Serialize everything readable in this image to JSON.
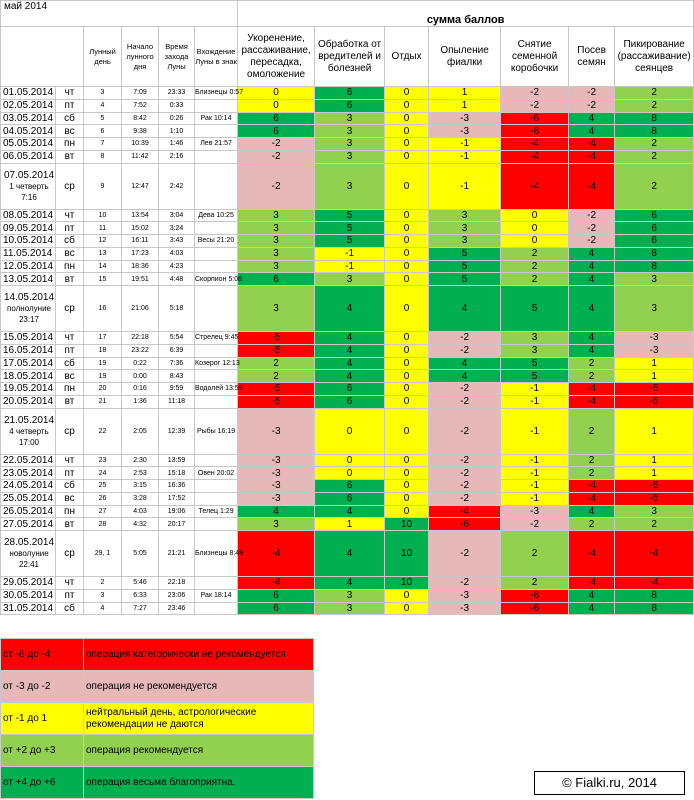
{
  "month_title": "май 2014",
  "sum_header": "сумма баллов",
  "columns": {
    "lunar_day": "Лунный день",
    "moon_rise": "Начало лунного дня",
    "moon_set": "Время захода Луны",
    "sign_entry": "Вхождение Луны в знак",
    "ops": [
      "Укоренение, рассаживание, пересадка, омоложение",
      "Обработка от вредителей и болезней",
      "Отдых",
      "Опыление фиалки",
      "Снятие семенной коробочки",
      "Посев семян",
      "Пикирование (рассаживание) сеянцев"
    ]
  },
  "rows": [
    {
      "date": "01.05.2014",
      "dow": "чт",
      "lunar": "3",
      "rise": "7:09",
      "set": "23:33",
      "sign": "Близнецы 0:57",
      "scores": [
        "0",
        "6",
        "0",
        "1",
        "-2",
        "-2",
        "2"
      ],
      "colors": [
        "y",
        "g",
        "y",
        "y",
        "p",
        "p",
        "lg"
      ]
    },
    {
      "date": "02.05.2014",
      "dow": "пт",
      "lunar": "4",
      "rise": "7:52",
      "set": "0:33",
      "sign": "",
      "scores": [
        "0",
        "6",
        "0",
        "1",
        "-2",
        "-2",
        "2"
      ],
      "colors": [
        "y",
        "g",
        "y",
        "y",
        "p",
        "p",
        "lg"
      ]
    },
    {
      "date": "03.05.2014",
      "dow": "сб",
      "lunar": "5",
      "rise": "8:42",
      "set": "0:26",
      "sign": "Рак 10:14",
      "scores": [
        "6",
        "3",
        "0",
        "-3",
        "-6",
        "4",
        "8"
      ],
      "colors": [
        "g",
        "lg",
        "y",
        "p",
        "r",
        "g",
        "g"
      ]
    },
    {
      "date": "04.05.2014",
      "dow": "вс",
      "lunar": "6",
      "rise": "9:38",
      "set": "1:10",
      "sign": "",
      "scores": [
        "6",
        "3",
        "0",
        "-3",
        "-6",
        "4",
        "8"
      ],
      "colors": [
        "g",
        "lg",
        "y",
        "p",
        "r",
        "g",
        "g"
      ]
    },
    {
      "date": "05.05.2014",
      "dow": "пн",
      "lunar": "7",
      "rise": "10:39",
      "set": "1:46",
      "sign": "Лев 21:57",
      "scores": [
        "-2",
        "3",
        "0",
        "-1",
        "-4",
        "-4",
        "2"
      ],
      "colors": [
        "p",
        "lg",
        "y",
        "y",
        "r",
        "r",
        "lg"
      ]
    },
    {
      "date": "06.05.2014",
      "dow": "вт",
      "lunar": "8",
      "rise": "11:42",
      "set": "2:16",
      "sign": "",
      "scores": [
        "-2",
        "3",
        "0",
        "-1",
        "-4",
        "-4",
        "2"
      ],
      "colors": [
        "p",
        "lg",
        "y",
        "y",
        "r",
        "r",
        "lg"
      ]
    },
    {
      "date": "07.05.2014",
      "phase": "1 четверть",
      "phase_time": "7:16",
      "dow": "ср",
      "lunar": "9",
      "rise": "12:47",
      "set": "2:42",
      "sign": "",
      "scores": [
        "-2",
        "3",
        "0",
        "-1",
        "-4",
        "-4",
        "2"
      ],
      "colors": [
        "p",
        "lg",
        "y",
        "y",
        "r",
        "r",
        "lg"
      ]
    },
    {
      "date": "08.05.2014",
      "dow": "чт",
      "lunar": "10",
      "rise": "13:54",
      "set": "3:04",
      "sign": "Дева 10:25",
      "scores": [
        "3",
        "5",
        "0",
        "3",
        "0",
        "-2",
        "6"
      ],
      "colors": [
        "lg",
        "g",
        "y",
        "lg",
        "y",
        "p",
        "g"
      ]
    },
    {
      "date": "09.05.2014",
      "dow": "пт",
      "lunar": "11",
      "rise": "15:02",
      "set": "3:24",
      "sign": "",
      "scores": [
        "3",
        "5",
        "0",
        "3",
        "0",
        "-2",
        "6"
      ],
      "colors": [
        "lg",
        "g",
        "y",
        "lg",
        "y",
        "p",
        "g"
      ]
    },
    {
      "date": "10.05.2014",
      "dow": "сб",
      "lunar": "12",
      "rise": "16:11",
      "set": "3:43",
      "sign": "Весы 21:20",
      "scores": [
        "3",
        "5",
        "0",
        "3",
        "0",
        "-2",
        "6"
      ],
      "colors": [
        "lg",
        "g",
        "y",
        "lg",
        "y",
        "p",
        "g"
      ]
    },
    {
      "date": "11.05.2014",
      "dow": "вс",
      "lunar": "13",
      "rise": "17:23",
      "set": "4:03",
      "sign": "",
      "scores": [
        "3",
        "-1",
        "0",
        "5",
        "2",
        "4",
        "8"
      ],
      "colors": [
        "lg",
        "y",
        "y",
        "g",
        "lg",
        "g",
        "g"
      ]
    },
    {
      "date": "12.05.2014",
      "dow": "пн",
      "lunar": "14",
      "rise": "18:36",
      "set": "4:23",
      "sign": "",
      "scores": [
        "3",
        "-1",
        "0",
        "5",
        "2",
        "4",
        "8"
      ],
      "colors": [
        "lg",
        "y",
        "y",
        "g",
        "lg",
        "g",
        "g"
      ]
    },
    {
      "date": "13.05.2014",
      "dow": "вт",
      "lunar": "15",
      "rise": "19:51",
      "set": "4:48",
      "sign": "Скорпион 5:08",
      "scores": [
        "6",
        "3",
        "0",
        "5",
        "2",
        "4",
        "3"
      ],
      "colors": [
        "g",
        "lg",
        "y",
        "g",
        "lg",
        "g",
        "lg"
      ]
    },
    {
      "date": "14.05.2014",
      "phase": "полнолуние",
      "phase_time": "23:17",
      "dow": "ср",
      "lunar": "16",
      "rise": "21:06",
      "set": "5:18",
      "sign": "",
      "scores": [
        "3",
        "4",
        "0",
        "4",
        "5",
        "4",
        "3"
      ],
      "colors": [
        "lg",
        "g",
        "y",
        "g",
        "g",
        "g",
        "lg"
      ]
    },
    {
      "date": "15.05.2014",
      "dow": "чт",
      "lunar": "17",
      "rise": "22:18",
      "set": "5:54",
      "sign": "Стрелец 9:45",
      "scores": [
        "-5",
        "4",
        "0",
        "-2",
        "3",
        "4",
        "-3"
      ],
      "colors": [
        "r",
        "g",
        "y",
        "p",
        "lg",
        "g",
        "p"
      ]
    },
    {
      "date": "16.05.2014",
      "dow": "пт",
      "lunar": "18",
      "rise": "23:22",
      "set": "6:39",
      "sign": "",
      "scores": [
        "-5",
        "4",
        "0",
        "-2",
        "3",
        "4",
        "-3"
      ],
      "colors": [
        "r",
        "g",
        "y",
        "p",
        "lg",
        "g",
        "p"
      ]
    },
    {
      "date": "17.05.2014",
      "dow": "сб",
      "lunar": "19",
      "rise": "0:22",
      "set": "7:36",
      "sign": "Козерог 12:13",
      "scores": [
        "2",
        "4",
        "0",
        "4",
        "5",
        "2",
        "1"
      ],
      "colors": [
        "lg",
        "g",
        "y",
        "g",
        "g",
        "lg",
        "y"
      ]
    },
    {
      "date": "18.05.2014",
      "dow": "вс",
      "lunar": "19",
      "rise": "0:00",
      "set": "8:43",
      "sign": "",
      "scores": [
        "2",
        "4",
        "0",
        "4",
        "5",
        "2",
        "1"
      ],
      "colors": [
        "lg",
        "g",
        "y",
        "g",
        "g",
        "lg",
        "y"
      ]
    },
    {
      "date": "19.05.2014",
      "dow": "пн",
      "lunar": "20",
      "rise": "0:16",
      "set": "9:59",
      "sign": "Водолей 13:59",
      "scores": [
        "-5",
        "6",
        "0",
        "-2",
        "-1",
        "-4",
        "-5"
      ],
      "colors": [
        "r",
        "g",
        "y",
        "p",
        "y",
        "r",
        "r"
      ]
    },
    {
      "date": "20.05.2014",
      "dow": "вт",
      "lunar": "21",
      "rise": "1:36",
      "set": "11:18",
      "sign": "",
      "scores": [
        "-5",
        "6",
        "0",
        "-2",
        "-1",
        "-4",
        "-5"
      ],
      "colors": [
        "r",
        "g",
        "y",
        "p",
        "y",
        "r",
        "r"
      ]
    },
    {
      "date": "21.05.2014",
      "phase": "4 четверть",
      "phase_time": "17:00",
      "dow": "ср",
      "lunar": "22",
      "rise": "2:05",
      "set": "12:39",
      "sign": "Рыбы 16:19",
      "scores": [
        "-3",
        "0",
        "0",
        "-2",
        "-1",
        "2",
        "1"
      ],
      "colors": [
        "p",
        "y",
        "y",
        "p",
        "y",
        "lg",
        "y"
      ]
    },
    {
      "date": "22.05.2014",
      "dow": "чт",
      "lunar": "23",
      "rise": "2:30",
      "set": "13:59",
      "sign": "",
      "scores": [
        "-3",
        "0",
        "0",
        "-2",
        "-1",
        "2",
        "1"
      ],
      "colors": [
        "p",
        "y",
        "y",
        "p",
        "y",
        "lg",
        "y"
      ]
    },
    {
      "date": "23.05.2014",
      "dow": "пт",
      "lunar": "24",
      "rise": "2:53",
      "set": "15:18",
      "sign": "Овен 20:02",
      "scores": [
        "-3",
        "0",
        "0",
        "-2",
        "-1",
        "2",
        "1"
      ],
      "colors": [
        "p",
        "y",
        "y",
        "p",
        "y",
        "lg",
        "y"
      ]
    },
    {
      "date": "24.05.2014",
      "dow": "сб",
      "lunar": "25",
      "rise": "3:15",
      "set": "16:36",
      "sign": "",
      "scores": [
        "-3",
        "6",
        "0",
        "-2",
        "-1",
        "-4",
        "-5"
      ],
      "colors": [
        "p",
        "g",
        "y",
        "p",
        "y",
        "r",
        "r"
      ]
    },
    {
      "date": "25.05.2014",
      "dow": "вс",
      "lunar": "26",
      "rise": "3:28",
      "set": "17:52",
      "sign": "",
      "scores": [
        "-3",
        "6",
        "0",
        "-2",
        "-1",
        "-4",
        "-5"
      ],
      "colors": [
        "p",
        "g",
        "y",
        "p",
        "y",
        "r",
        "r"
      ]
    },
    {
      "date": "26.05.2014",
      "dow": "пн",
      "lunar": "27",
      "rise": "4:03",
      "set": "19:06",
      "sign": "Телец 1:29",
      "scores": [
        "4",
        "4",
        "0",
        "-4",
        "-3",
        "4",
        "3"
      ],
      "colors": [
        "g",
        "g",
        "y",
        "r",
        "p",
        "g",
        "lg"
      ]
    },
    {
      "date": "27.05.2014",
      "dow": "вт",
      "lunar": "28",
      "rise": "4:32",
      "set": "20:17",
      "sign": "",
      "scores": [
        "3",
        "1",
        "10",
        "-6",
        "-2",
        "2",
        "2"
      ],
      "colors": [
        "lg",
        "y",
        "g",
        "r",
        "p",
        "lg",
        "lg"
      ]
    },
    {
      "date": "28.05.2014",
      "phase": "новолуние",
      "phase_time": "22:41",
      "dow": "ср",
      "lunar": "29, 1",
      "rise": "5:05",
      "set": "21:21",
      "sign": "Близнецы 8:49",
      "scores": [
        "-4",
        "4",
        "10",
        "-2",
        "2",
        "-4",
        "-4"
      ],
      "colors": [
        "r",
        "g",
        "g",
        "p",
        "lg",
        "r",
        "r"
      ]
    },
    {
      "date": "29.05.2014",
      "dow": "чт",
      "lunar": "2",
      "rise": "5:46",
      "set": "22:18",
      "sign": "",
      "scores": [
        "-4",
        "4",
        "10",
        "-2",
        "2",
        "-4",
        "-4"
      ],
      "colors": [
        "r",
        "g",
        "g",
        "p",
        "lg",
        "r",
        "r"
      ]
    },
    {
      "date": "30.05.2014",
      "dow": "пт",
      "lunar": "3",
      "rise": "6:33",
      "set": "23:06",
      "sign": "Рак 18:14",
      "scores": [
        "6",
        "3",
        "0",
        "-3",
        "-6",
        "4",
        "8"
      ],
      "colors": [
        "g",
        "lg",
        "y",
        "p",
        "r",
        "g",
        "g"
      ]
    },
    {
      "date": "31.05.2014",
      "dow": "сб",
      "lunar": "4",
      "rise": "7:27",
      "set": "23:46",
      "sign": "",
      "scores": [
        "6",
        "3",
        "0",
        "-3",
        "-6",
        "4",
        "8"
      ],
      "colors": [
        "g",
        "lg",
        "y",
        "p",
        "r",
        "g",
        "g"
      ]
    }
  ],
  "legend": [
    {
      "range": "от -6 до -4",
      "text": "операция категорически не рекомендуется",
      "color": "r"
    },
    {
      "range": "от -3 до -2",
      "text": "операция не рекомендуется",
      "color": "p"
    },
    {
      "range": "от -1 до 1",
      "text": "нейтральный день, астрологические рекомендации не даются",
      "color": "y"
    },
    {
      "range": "от +2 до +3",
      "text": "операция рекомендуется",
      "color": "lg"
    },
    {
      "range": "от +4 до +6",
      "text": "операция весьма благоприятна.",
      "color": "g"
    }
  ],
  "copyright": "© Fialki.ru, 2014",
  "palette": {
    "r": "#ff0000",
    "p": "#e6b8b7",
    "y": "#ffff00",
    "lg": "#92d050",
    "g": "#00b050"
  }
}
